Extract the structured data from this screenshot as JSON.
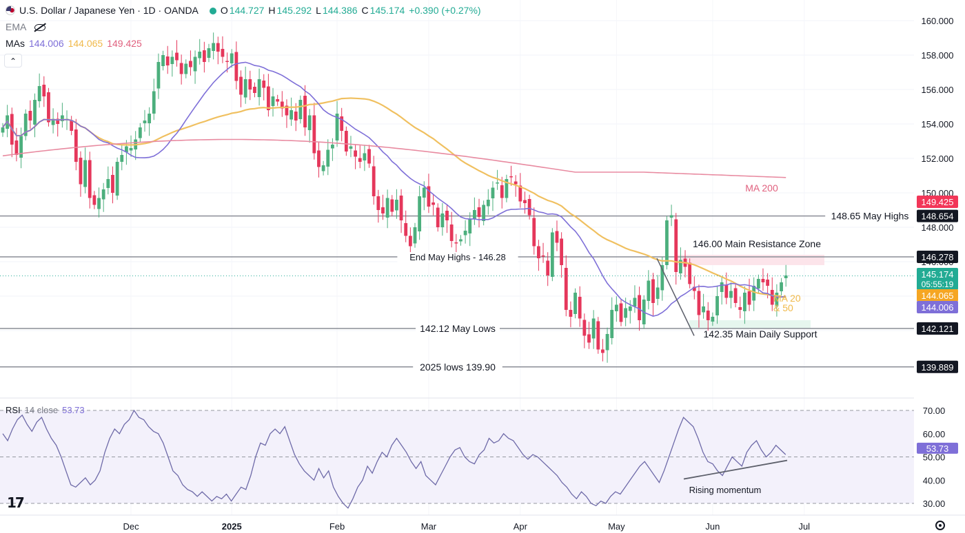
{
  "header": {
    "title": "U.S. Dollar / Japanese Yen · 1D · OANDA",
    "ohlc": [
      {
        "key": "O",
        "value": "144.727"
      },
      {
        "key": "H",
        "value": "145.292"
      },
      {
        "key": "L",
        "value": "144.386"
      },
      {
        "key": "C",
        "value": "145.174"
      }
    ],
    "change": "+0.390 (+0.27%)",
    "ema_label": "EMA",
    "mas_label": "MAs",
    "ma_values": [
      {
        "value": "144.006",
        "color": "#7e6fd8"
      },
      {
        "value": "144.065",
        "color": "#f0b94a"
      },
      {
        "value": "149.425",
        "color": "#e0607e"
      }
    ],
    "collapse_glyph": "⌃"
  },
  "rsi_legend": {
    "name": "RSI",
    "params": "14 close",
    "value": "53.73"
  },
  "chart_data": {
    "type": "candlestick",
    "symbol": "USDJPY",
    "timeframe": "1D",
    "ylim": [
      139.0,
      160.5
    ],
    "price_ticks": [
      160.0,
      158.0,
      156.0,
      154.0,
      152.0,
      150.0,
      148.0,
      146.0,
      144.0,
      142.0
    ],
    "price_tick_labels": [
      "160.000",
      "158.000",
      "156.000",
      "154.000",
      "152.000",
      "150.000",
      "148.000",
      "146.000",
      "144.000",
      "142.000"
    ],
    "x_labels": [
      {
        "text": "Dec",
        "bold": false,
        "index": 28
      },
      {
        "text": "2025",
        "bold": true,
        "index": 50
      },
      {
        "text": "Feb",
        "bold": false,
        "index": 73
      },
      {
        "text": "Mar",
        "bold": false,
        "index": 93
      },
      {
        "text": "Apr",
        "bold": false,
        "index": 113
      },
      {
        "text": "May",
        "bold": false,
        "index": 134
      },
      {
        "text": "Jun",
        "bold": false,
        "index": 155
      },
      {
        "text": "Jul",
        "bold": false,
        "index": 175
      }
    ],
    "bar_count_visible": 180,
    "closes": [
      153.8,
      154.5,
      152.8,
      152.2,
      153.3,
      154.6,
      154.2,
      155.4,
      156.2,
      155.6,
      154.1,
      154.3,
      154.0,
      154.5,
      154.3,
      153.6,
      151.8,
      150.5,
      151.9,
      149.7,
      149.3,
      149.7,
      150.2,
      150.8,
      150.0,
      151.8,
      152.2,
      152.7,
      152.6,
      153.1,
      153.8,
      154.2,
      154.6,
      155.9,
      157.6,
      158.0,
      157.4,
      157.9,
      157.7,
      156.9,
      157.5,
      157.3,
      157.9,
      158.2,
      157.6,
      158.4,
      158.7,
      158.2,
      157.9,
      157.6,
      158.1,
      156.5,
      155.7,
      156.6,
      156.0,
      155.8,
      156.6,
      156.1,
      154.8,
      155.6,
      155.3,
      154.9,
      154.5,
      154.8,
      154.2,
      155.4,
      153.8,
      154.5,
      152.3,
      151.5,
      151.6,
      152.5,
      152.8,
      154.6,
      153.6,
      152.4,
      152.7,
      152.1,
      151.8,
      152.3,
      151.7,
      149.8,
      149.0,
      148.8,
      149.7,
      148.9,
      149.6,
      148.4,
      147.5,
      146.9,
      148.0,
      149.8,
      150.3,
      149.2,
      149.3,
      148.0,
      148.8,
      148.4,
      147.2,
      147.1,
      147.3,
      147.8,
      148.5,
      149.0,
      148.6,
      149.3,
      149.6,
      150.3,
      150.6,
      149.7,
      150.8,
      150.9,
      150.5,
      149.5,
      149.4,
      148.7,
      146.9,
      146.2,
      146.3,
      145.2,
      147.7,
      147.1,
      145.8,
      143.2,
      142.8,
      144.2,
      142.7,
      141.7,
      141.3,
      142.7,
      140.9,
      140.7,
      141.8,
      143.2,
      143.5,
      142.5,
      143.3,
      143.4,
      143.9,
      142.6,
      143.8,
      144.9,
      143.6,
      144.5,
      145.8,
      148.4,
      148.7,
      145.4,
      146.1,
      145.7,
      144.7,
      144.3,
      142.9,
      143.4,
      142.6,
      142.8,
      144.0,
      144.8,
      143.9,
      144.3,
      143.6,
      143.2,
      144.2,
      143.5,
      144.6,
      145.0,
      144.8,
      144.6,
      143.5,
      144.2,
      144.8,
      145.2
    ],
    "series": [
      {
        "name": "MA 20",
        "color": "#7e6fd8"
      },
      {
        "name": "MA 50",
        "color": "#f0c060"
      },
      {
        "name": "MA 200",
        "color": "#e88aa0"
      }
    ],
    "ma200_label": "MA 200",
    "ma2050_label": [
      "MA 20",
      "& 50"
    ],
    "levels": [
      {
        "price": 148.654,
        "label": "148.65 May Highs",
        "tag": "148.654",
        "tag_color": "#131722"
      },
      {
        "price": 146.278,
        "label": "End May Highs - 146.28",
        "tag": "146.278",
        "tag_color": "#131722"
      },
      {
        "price": 142.121,
        "label": "142.12 May Lows",
        "tag": "142.121",
        "tag_color": "#131722"
      },
      {
        "price": 139.889,
        "label": "2025 lows 139.90",
        "tag": "139.889",
        "tag_color": "#131722"
      }
    ],
    "resistance_zone": {
      "low": 145.8,
      "high": 146.4,
      "label": "146.00 Main Resistance Zone"
    },
    "support_zone": {
      "low": 142.1,
      "high": 142.6,
      "label": "142.35 Main Daily Support"
    },
    "price_tags": [
      {
        "price": 149.425,
        "text": "149.425",
        "color": "#f23658"
      },
      {
        "price": 145.174,
        "text": "145.174",
        "color": "#22ab94",
        "countdown": "05:55:19"
      },
      {
        "price": 144.065,
        "text": "144.065",
        "color": "#f5a623"
      },
      {
        "price": 144.006,
        "text": "144.006",
        "color": "#7e6fd8"
      }
    ],
    "rsi": {
      "ylim": [
        28,
        72
      ],
      "ticks": [
        70,
        60,
        50,
        40,
        30
      ],
      "tick_labels": [
        "70.00",
        "60.00",
        "50.00",
        "40.00",
        "30.00"
      ],
      "value_tag": "53.73",
      "annotation": "Rising momentum",
      "values": [
        60,
        57,
        62,
        66,
        68,
        64,
        61,
        65,
        67,
        62,
        58,
        55,
        50,
        44,
        38,
        37,
        39,
        41,
        38,
        40,
        44,
        52,
        58,
        62,
        60,
        64,
        66,
        70,
        67,
        66,
        63,
        61,
        60,
        56,
        50,
        44,
        42,
        38,
        36,
        35,
        33,
        35,
        33,
        31,
        33,
        32,
        34,
        31,
        34,
        37,
        36,
        42,
        50,
        56,
        55,
        60,
        62,
        60,
        63,
        57,
        51,
        47,
        44,
        42,
        40,
        45,
        41,
        44,
        37,
        33,
        30,
        28,
        32,
        37,
        40,
        46,
        43,
        48,
        52,
        50,
        55,
        58,
        55,
        52,
        48,
        45,
        48,
        42,
        40,
        38,
        42,
        46,
        50,
        53,
        54,
        50,
        48,
        47,
        51,
        53,
        58,
        56,
        57,
        60,
        58,
        57,
        54,
        51,
        49,
        51,
        50,
        48,
        46,
        44,
        42,
        39,
        37,
        34,
        32,
        35,
        33,
        30,
        29,
        31,
        30,
        33,
        35,
        34,
        37,
        40,
        43,
        46,
        48,
        45,
        42,
        39,
        44,
        50,
        56,
        62,
        67,
        65,
        63,
        58,
        52,
        48,
        47,
        44,
        42,
        46,
        50,
        48,
        46,
        52,
        55,
        57,
        53,
        50,
        52,
        55,
        53,
        51
      ]
    }
  }
}
